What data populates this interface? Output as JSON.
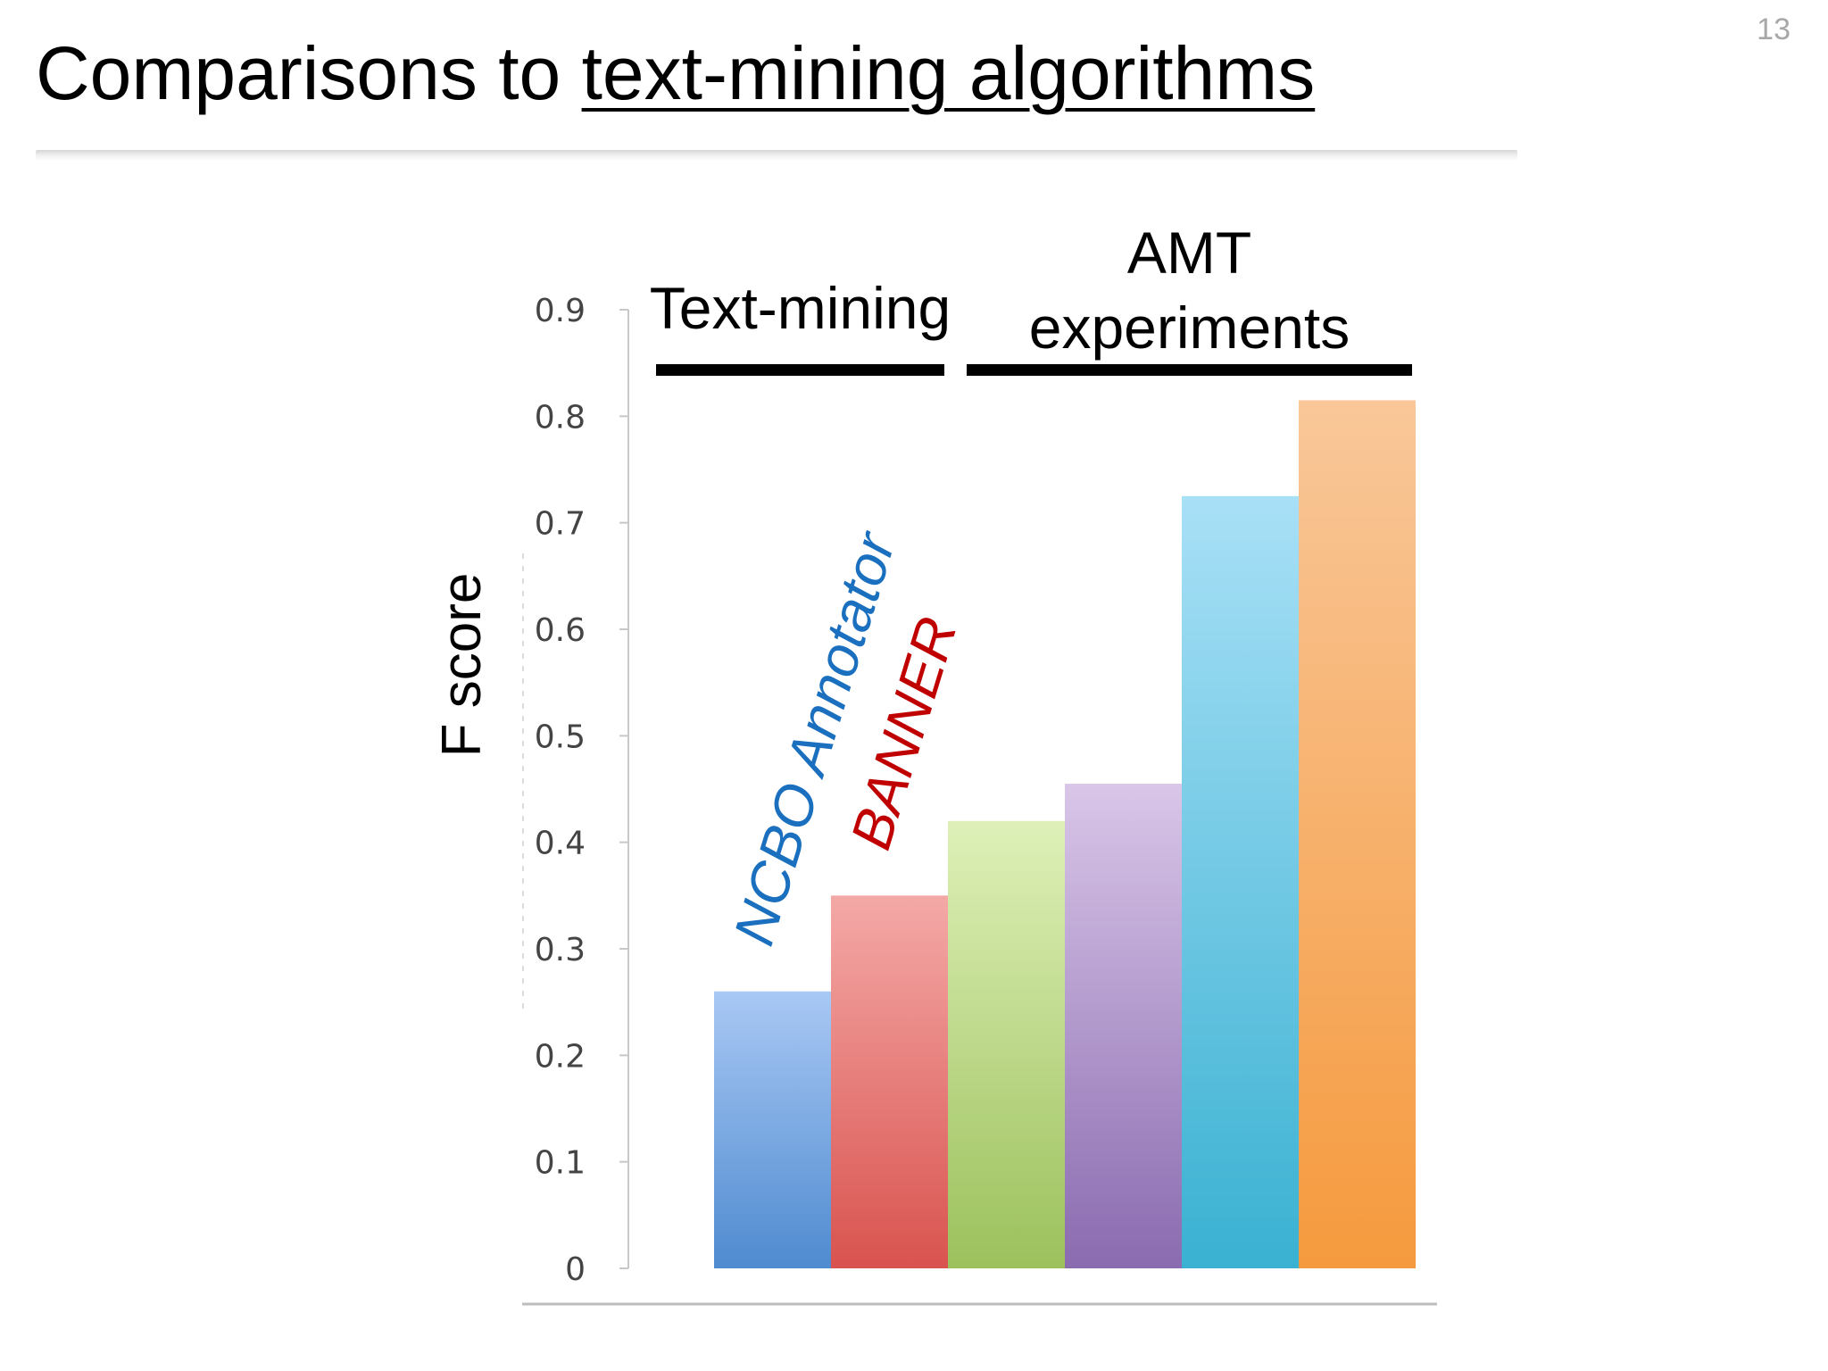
{
  "slide": {
    "number": "13",
    "title_plain": "Comparisons to ",
    "title_underlined": "text-mining algorithms"
  },
  "chart_data": {
    "type": "bar",
    "ylabel": "F score",
    "ylim": [
      0,
      0.9
    ],
    "yticks": [
      "0",
      "0.1",
      "0.2",
      "0.3",
      "0.4",
      "0.5",
      "0.6",
      "0.7",
      "0.8",
      "0.9"
    ],
    "groups": [
      {
        "label_lines": [
          "Text-mining"
        ],
        "bars": [
          0,
          1
        ]
      },
      {
        "label_lines": [
          "AMT",
          "experiments"
        ],
        "bars": [
          2,
          3,
          4,
          5
        ]
      }
    ],
    "bars": [
      {
        "value": 0.26,
        "label": "NCBO Annotator",
        "label_color": "#1a6fbf",
        "color_top": "#a9c8f4",
        "color_bottom": "#4f8bd0"
      },
      {
        "value": 0.35,
        "label": "BANNER",
        "label_color": "#c00000",
        "color_top": "#f4a9a7",
        "color_bottom": "#d9534f"
      },
      {
        "value": 0.42,
        "label": "",
        "label_color": "",
        "color_top": "#def0b8",
        "color_bottom": "#9cc15c"
      },
      {
        "value": 0.455,
        "label": "",
        "label_color": "",
        "color_top": "#d9c6e8",
        "color_bottom": "#8a6bb0"
      },
      {
        "value": 0.725,
        "label": "",
        "label_color": "",
        "color_top": "#a8e0f6",
        "color_bottom": "#3ab1d2"
      },
      {
        "value": 0.815,
        "label": "",
        "label_color": "",
        "color_top": "#f9c799",
        "color_bottom": "#f59a3e"
      }
    ],
    "grid": false,
    "legend": "none"
  }
}
